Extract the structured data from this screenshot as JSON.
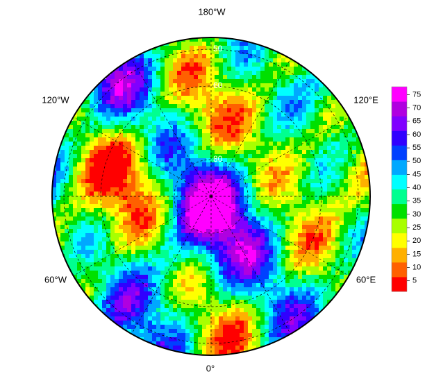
{
  "map": {
    "longitude_labels": [
      "180°W",
      "120°W",
      "120°E",
      "60°W",
      "60°E",
      "0°"
    ],
    "latitude_labels": [
      50,
      60,
      80
    ],
    "colorbar": {
      "ticks": [
        5,
        10,
        15,
        20,
        25,
        30,
        35,
        40,
        45,
        50,
        55,
        60,
        65,
        70,
        75
      ],
      "lim": [
        1,
        78
      ],
      "colors": [
        "#ff0000",
        "#ff6000",
        "#ffb000",
        "#ffff00",
        "#a8ff00",
        "#00e000",
        "#00ff90",
        "#00ffff",
        "#00a8ff",
        "#0040ff",
        "#3000ff",
        "#8000ff",
        "#b000e0",
        "#ff00ff"
      ]
    }
  }
}
